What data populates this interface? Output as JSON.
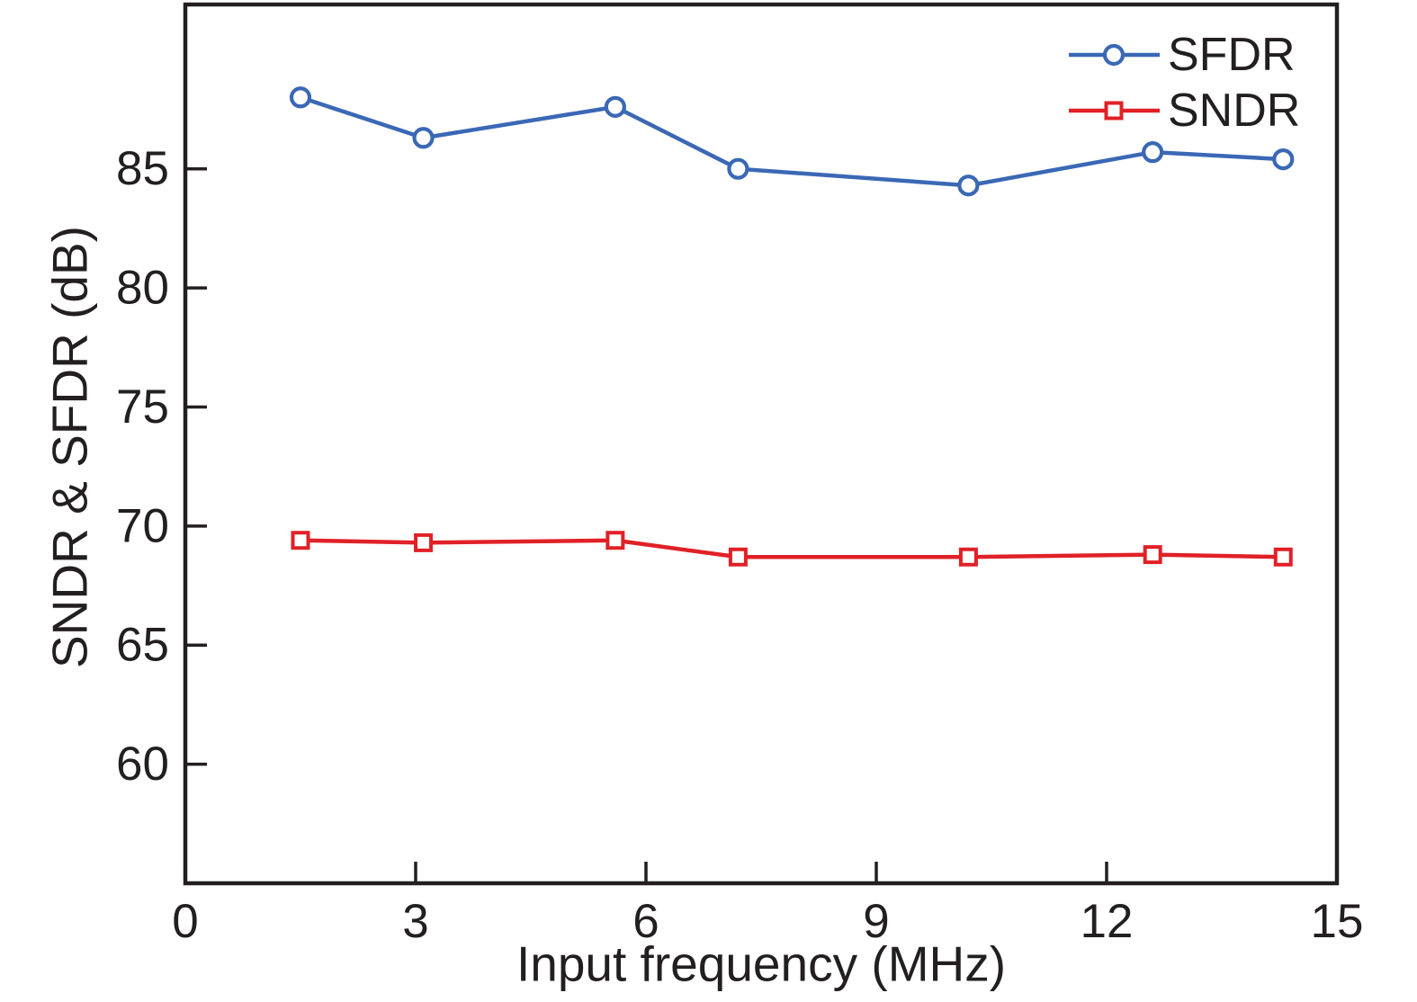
{
  "colors": {
    "axis": "#231f20",
    "background": "#ffffff",
    "marker_fill": "#ffffff",
    "sfdr_blue": "#3a68b5",
    "sndr_red": "#e02127"
  },
  "chart_data": {
    "type": "line",
    "title": "",
    "xlabel": "Input frequency (MHz)",
    "ylabel": "SNDR & SFDR (dB)",
    "xlim": [
      0,
      15
    ],
    "ylim": [
      55,
      91.9
    ],
    "xticks": [
      0,
      3,
      6,
      9,
      12,
      15
    ],
    "yticks": [
      60,
      65,
      70,
      75,
      80,
      85
    ],
    "grid": false,
    "legend_position": "top-right-inside",
    "x": [
      1.5,
      3.1,
      5.6,
      7.2,
      10.2,
      12.6,
      14.3
    ],
    "series": [
      {
        "name": "SFDR",
        "marker": "circle",
        "color": "#3a68b5",
        "values": [
          88.0,
          86.3,
          87.6,
          85.0,
          84.3,
          85.7,
          85.4
        ]
      },
      {
        "name": "SNDR",
        "marker": "square",
        "color": "#e02127",
        "values": [
          69.4,
          69.3,
          69.4,
          68.7,
          68.7,
          68.8,
          68.7
        ]
      }
    ]
  }
}
